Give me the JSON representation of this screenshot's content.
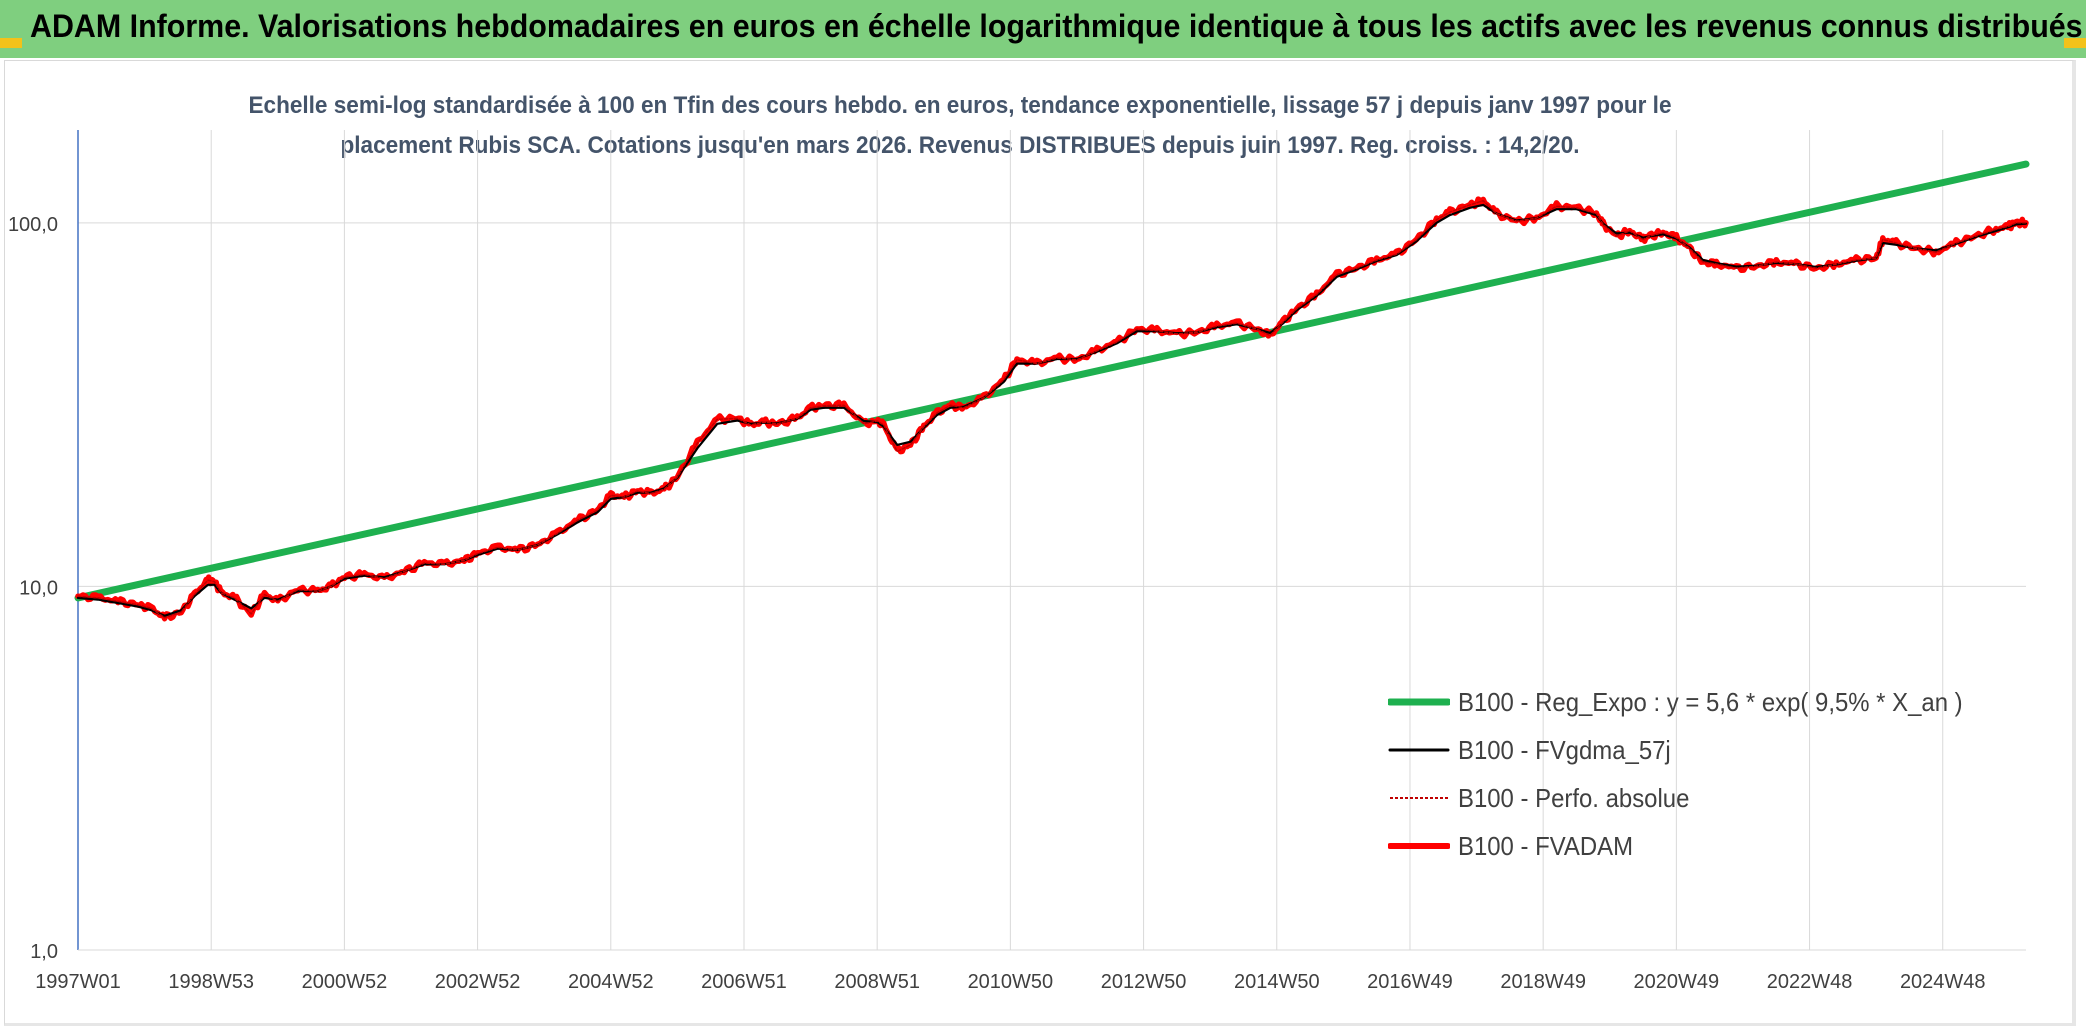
{
  "banner": {
    "title": "ADAM Informe. Valorisations hebdomadaires en euros en échelle logarithmique identique à tous les actifs avec les revenus connus distribués"
  },
  "colors": {
    "banner": "#7fcf7f",
    "regression": "#1eb04f",
    "smoothed": "#000000",
    "perfo": "#c00000",
    "fvadam": "#ff0000",
    "gridline": "#d9d9d9",
    "axis": "#4472c4",
    "subtitle": "#44546a",
    "corner": "#f3c21a"
  },
  "chart_data": {
    "type": "line",
    "title_lines": [
      "Echelle semi-log standardisée à 100 en Tfin des cours hebdo. en euros, tendance exponentielle, lissage 57 j depuis janv 1997 pour le",
      "placement Rubis SCA. Cotations jusqu'en mars 2026. Revenus DISTRIBUES depuis juin 1997. Reg. croiss. : 14,2/20."
    ],
    "y_scale": "log",
    "y_range": [
      1,
      180
    ],
    "y_ticks": [
      {
        "value": 1,
        "label": "1,0"
      },
      {
        "value": 10,
        "label": "10,0"
      },
      {
        "value": 100,
        "label": "100,0"
      }
    ],
    "x_range": [
      1997.0,
      2026.25
    ],
    "x_tick_labels": [
      "1997W01",
      "1998W53",
      "2000W52",
      "2002W52",
      "2004W52",
      "2006W51",
      "2008W51",
      "2010W50",
      "2012W50",
      "2014W50",
      "2016W49",
      "2018W49",
      "2020W49",
      "2022W48",
      "2024W48"
    ],
    "x_tick_years": [
      1997.0,
      1999.0,
      2001.0,
      2003.0,
      2005.0,
      2007.0,
      2009.0,
      2011.0,
      2013.0,
      2015.0,
      2017.0,
      2019.0,
      2021.0,
      2023.0,
      2025.0
    ],
    "grid": true,
    "legend_position": "bottom-right",
    "legend": [
      {
        "key": "regression",
        "label": "B100 - Reg_Expo : y = 5,6 * exp( 9,5% *  X_an )"
      },
      {
        "key": "smoothed",
        "label": "B100 - FVgdma_57j"
      },
      {
        "key": "perfo",
        "label": "B100 - Perfo. absolue"
      },
      {
        "key": "fvadam",
        "label": "B100 - FVADAM"
      }
    ],
    "series": [
      {
        "key": "regression",
        "name": "B100 - Reg_Expo : y = 5,6 * exp( 9,5% *  X_an )",
        "x": [
          1997.0,
          2026.25
        ],
        "y": [
          9.3,
          145
        ]
      },
      {
        "key": "fvadam",
        "name": "B100 - FVADAM",
        "x": [
          1997.0,
          1997.3,
          1997.6,
          1997.9,
          1998.1,
          1998.3,
          1998.55,
          1998.75,
          1998.95,
          1999.05,
          1999.15,
          1999.35,
          1999.6,
          1999.8,
          2000.0,
          2000.3,
          2000.6,
          2000.8,
          2001.0,
          2001.3,
          2001.6,
          2001.9,
          2002.2,
          2002.5,
          2002.8,
          2003.0,
          2003.3,
          2003.6,
          2003.9,
          2004.2,
          2004.5,
          2004.8,
          2005.0,
          2005.2,
          2005.4,
          2005.6,
          2005.8,
          2006.0,
          2006.3,
          2006.6,
          2006.9,
          2007.1,
          2007.3,
          2007.5,
          2007.8,
          2008.0,
          2008.2,
          2008.5,
          2008.8,
          2009.0,
          2009.1,
          2009.3,
          2009.5,
          2009.7,
          2009.9,
          2010.1,
          2010.3,
          2010.6,
          2010.9,
          2011.1,
          2011.4,
          2011.7,
          2012.0,
          2012.3,
          2012.6,
          2012.9,
          2013.2,
          2013.5,
          2013.8,
          2014.1,
          2014.4,
          2014.7,
          2014.9,
          2015.1,
          2015.3,
          2015.6,
          2015.9,
          2016.2,
          2016.5,
          2016.8,
          2017.1,
          2017.4,
          2017.6,
          2017.9,
          2018.1,
          2018.3,
          2018.6,
          2018.9,
          2019.2,
          2019.5,
          2019.8,
          2019.9,
          2020.1,
          2020.3,
          2020.5,
          2020.6,
          2020.8,
          2021.0,
          2021.2,
          2021.4,
          2021.6,
          2021.9,
          2022.2,
          2022.5,
          2022.8,
          2023.1,
          2023.4,
          2023.7,
          2024.0,
          2024.1,
          2024.3,
          2024.6,
          2024.9,
          2025.2,
          2025.5,
          2025.8,
          2026.0,
          2026.1,
          2026.25
        ],
        "y": [
          9.4,
          9.3,
          9.1,
          8.9,
          8.7,
          8.2,
          8.5,
          9.5,
          10.4,
          10.3,
          9.6,
          9.3,
          8.4,
          9.5,
          9.1,
          9.8,
          9.7,
          10.0,
          10.6,
          10.8,
          10.5,
          11.0,
          11.6,
          11.5,
          11.8,
          12.3,
          12.8,
          12.6,
          13.0,
          14.0,
          15.2,
          16.2,
          17.8,
          17.6,
          18.3,
          18.0,
          18.5,
          20.0,
          24.8,
          28.8,
          29.0,
          27.8,
          28.3,
          28.0,
          29.0,
          31.0,
          31.4,
          31.5,
          28.0,
          28.5,
          27.8,
          23.5,
          24.5,
          27.5,
          30.0,
          31.5,
          31.0,
          33.0,
          37.0,
          42.0,
          41.0,
          42.5,
          42.0,
          44.5,
          47.0,
          51.0,
          50.5,
          49.5,
          50.0,
          52.0,
          53.0,
          51.0,
          49.0,
          53.5,
          58.0,
          63.5,
          72.0,
          75.0,
          79.0,
          82.0,
          90.0,
          102.0,
          107.0,
          112.0,
          115.0,
          106.0,
          101.0,
          103.0,
          111.0,
          110.0,
          106.0,
          99.0,
          92.0,
          95.0,
          90.0,
          92.0,
          94.0,
          91.0,
          85.0,
          78.0,
          77.0,
          75.0,
          76.0,
          78.0,
          77.0,
          75.0,
          77.0,
          79.0,
          80.0,
          90.0,
          88.0,
          85.0,
          83.0,
          88.0,
          92.0,
          96.0,
          98.0,
          100.0,
          100.0
        ]
      },
      {
        "key": "smoothed",
        "name": "B100 - FVgdma_57j",
        "x": [
          1997.0,
          1997.3,
          1997.6,
          1997.9,
          1998.1,
          1998.3,
          1998.55,
          1998.75,
          1998.95,
          1999.05,
          1999.15,
          1999.35,
          1999.6,
          1999.8,
          2000.0,
          2000.3,
          2000.6,
          2000.8,
          2001.0,
          2001.3,
          2001.6,
          2001.9,
          2002.2,
          2002.5,
          2002.8,
          2003.0,
          2003.3,
          2003.6,
          2003.9,
          2004.2,
          2004.5,
          2004.8,
          2005.0,
          2005.2,
          2005.4,
          2005.6,
          2005.8,
          2006.0,
          2006.3,
          2006.6,
          2006.9,
          2007.1,
          2007.3,
          2007.5,
          2007.8,
          2008.0,
          2008.2,
          2008.5,
          2008.8,
          2009.0,
          2009.1,
          2009.3,
          2009.5,
          2009.7,
          2009.9,
          2010.1,
          2010.3,
          2010.6,
          2010.9,
          2011.1,
          2011.4,
          2011.7,
          2012.0,
          2012.3,
          2012.6,
          2012.9,
          2013.2,
          2013.5,
          2013.8,
          2014.1,
          2014.4,
          2014.7,
          2014.9,
          2015.1,
          2015.3,
          2015.6,
          2015.9,
          2016.2,
          2016.5,
          2016.8,
          2017.1,
          2017.4,
          2017.6,
          2017.9,
          2018.1,
          2018.3,
          2018.6,
          2018.9,
          2019.2,
          2019.5,
          2019.8,
          2019.9,
          2020.1,
          2020.3,
          2020.5,
          2020.6,
          2020.8,
          2021.0,
          2021.2,
          2021.4,
          2021.6,
          2021.9,
          2022.2,
          2022.5,
          2022.8,
          2023.1,
          2023.4,
          2023.7,
          2024.0,
          2024.1,
          2024.3,
          2024.6,
          2024.9,
          2025.2,
          2025.5,
          2025.8,
          2026.0,
          2026.1,
          2026.25
        ],
        "y": [
          9.3,
          9.2,
          9.0,
          8.8,
          8.6,
          8.3,
          8.6,
          9.4,
          10.1,
          10.1,
          9.6,
          9.2,
          8.7,
          9.3,
          9.2,
          9.7,
          9.7,
          10.0,
          10.5,
          10.7,
          10.6,
          11.0,
          11.5,
          11.5,
          11.8,
          12.2,
          12.7,
          12.6,
          13.0,
          13.9,
          15.0,
          16.0,
          17.4,
          17.6,
          18.1,
          18.1,
          18.6,
          19.9,
          24.0,
          28.0,
          28.6,
          28.0,
          28.2,
          28.1,
          28.9,
          30.6,
          31.0,
          31.0,
          28.5,
          28.3,
          27.5,
          24.5,
          25.0,
          27.3,
          29.6,
          31.0,
          31.2,
          33.0,
          36.5,
          41.0,
          41.0,
          42.2,
          42.2,
          44.2,
          46.6,
          50.3,
          50.3,
          49.7,
          50.0,
          51.6,
          52.6,
          51.0,
          49.8,
          53.0,
          57.5,
          63.0,
          71.0,
          74.5,
          78.5,
          81.5,
          89.0,
          100.0,
          105.0,
          110.0,
          112.0,
          106.0,
          101.5,
          103.0,
          109.0,
          109.0,
          105.0,
          99.5,
          93.5,
          94.0,
          91.0,
          91.8,
          93.0,
          90.5,
          85.5,
          79.0,
          77.5,
          75.8,
          76.2,
          77.6,
          77.0,
          75.6,
          76.8,
          78.6,
          80.0,
          88.0,
          87.0,
          85.0,
          84.0,
          87.5,
          91.5,
          95.0,
          97.5,
          99.0,
          99.5
        ]
      },
      {
        "key": "perfo",
        "name": "B100 - Perfo. absolue",
        "x": [
          1997.0,
          1997.3,
          1997.6,
          1997.9,
          1998.1,
          1998.3,
          1998.55,
          1998.75,
          1998.95,
          1999.05,
          1999.15,
          1999.35,
          1999.6,
          1999.8,
          2000.0,
          2000.3,
          2000.6,
          2000.8,
          2001.0,
          2001.3,
          2001.6,
          2001.9,
          2002.2,
          2002.5,
          2002.8,
          2003.0,
          2003.3,
          2003.6,
          2003.9,
          2004.2,
          2004.5,
          2004.8,
          2005.0,
          2005.2,
          2005.4,
          2005.6,
          2005.8,
          2006.0,
          2006.3,
          2006.6,
          2006.9,
          2007.1,
          2007.3,
          2007.5,
          2007.8,
          2008.0,
          2008.2,
          2008.5,
          2008.8,
          2009.0,
          2009.1,
          2009.3,
          2009.5,
          2009.7,
          2009.9,
          2010.1,
          2010.3,
          2010.6,
          2010.9,
          2011.1,
          2011.4,
          2011.7,
          2012.0,
          2012.3,
          2012.6,
          2012.9,
          2013.2,
          2013.5,
          2013.8,
          2014.1,
          2014.4,
          2014.7,
          2014.9,
          2015.1,
          2015.3,
          2015.6,
          2015.9,
          2016.2,
          2016.5,
          2016.8,
          2017.1,
          2017.4,
          2017.6,
          2017.9,
          2018.1,
          2018.3,
          2018.6,
          2018.9,
          2019.2,
          2019.5,
          2019.8,
          2019.9,
          2020.1,
          2020.3,
          2020.5,
          2020.6,
          2020.8,
          2021.0,
          2021.2,
          2021.4,
          2021.6,
          2021.9,
          2022.2,
          2022.5,
          2022.8,
          2023.1,
          2023.4,
          2023.7,
          2024.0,
          2024.1,
          2024.3,
          2024.6,
          2024.9,
          2025.2,
          2025.5,
          2025.8,
          2026.0,
          2026.1,
          2026.25
        ],
        "y": [
          9.4,
          9.3,
          9.1,
          8.9,
          8.7,
          8.2,
          8.5,
          9.5,
          10.4,
          10.3,
          9.6,
          9.3,
          8.4,
          9.5,
          9.1,
          9.8,
          9.7,
          10.0,
          10.6,
          10.8,
          10.5,
          11.0,
          11.6,
          11.5,
          11.8,
          12.3,
          12.8,
          12.6,
          13.0,
          14.0,
          15.2,
          16.2,
          17.8,
          17.6,
          18.3,
          18.0,
          18.5,
          20.0,
          24.8,
          28.8,
          29.0,
          27.8,
          28.3,
          28.0,
          29.0,
          31.0,
          31.4,
          31.5,
          28.0,
          28.5,
          27.8,
          23.5,
          24.5,
          27.5,
          30.0,
          31.5,
          31.0,
          33.0,
          37.0,
          42.0,
          41.0,
          42.5,
          42.0,
          44.5,
          47.0,
          51.0,
          50.5,
          49.5,
          50.0,
          52.0,
          53.0,
          51.0,
          49.0,
          53.5,
          58.0,
          63.5,
          72.0,
          75.0,
          79.0,
          82.0,
          90.0,
          102.0,
          107.0,
          112.0,
          115.0,
          106.0,
          101.0,
          103.0,
          111.0,
          110.0,
          106.0,
          99.0,
          92.0,
          95.0,
          90.0,
          92.0,
          94.0,
          91.0,
          85.0,
          78.0,
          77.0,
          75.0,
          76.0,
          78.0,
          77.0,
          75.0,
          77.0,
          79.0,
          80.0,
          90.0,
          88.0,
          85.0,
          83.0,
          88.0,
          92.0,
          96.0,
          98.0,
          100.0,
          100.0
        ]
      }
    ]
  }
}
